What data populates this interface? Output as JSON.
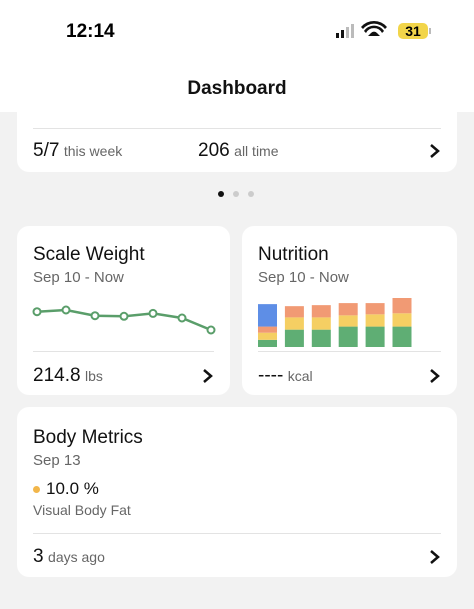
{
  "status_bar": {
    "time": "12:14",
    "battery": "31"
  },
  "header": {
    "title": "Dashboard"
  },
  "summary_card": {
    "week_count": "5/7",
    "week_label": "this week",
    "all_time_count": "206",
    "all_time_label": "all time"
  },
  "scale_weight": {
    "title": "Scale Weight",
    "range": "Sep 10 - Now",
    "value": "214.8",
    "unit": "lbs",
    "chart": {
      "type": "line",
      "color": "#5a9e6a",
      "values": [
        218,
        218.3,
        217.3,
        217.2,
        217.7,
        216.9,
        214.8
      ]
    }
  },
  "nutrition": {
    "title": "Nutrition",
    "range": "Sep 10 - Now",
    "value": "----",
    "unit": "kcal",
    "chart": {
      "type": "stacked_bar",
      "series": [
        {
          "color": "#5fae74",
          "values": [
            7,
            17,
            17,
            20,
            20,
            20
          ]
        },
        {
          "color": "#f5cf63",
          "values": [
            7,
            12,
            12,
            11,
            12,
            13
          ]
        },
        {
          "color": "#f19a74",
          "values": [
            6,
            11,
            12,
            12,
            11,
            15
          ]
        },
        {
          "color": "#5e8ee6",
          "values": [
            22,
            0,
            0,
            0,
            0,
            0
          ]
        }
      ]
    }
  },
  "body_metrics": {
    "title": "Body Metrics",
    "date": "Sep 13",
    "value": "10.0 %",
    "metric": "Visual Body Fat",
    "ago_count": "3",
    "ago_label": "days ago"
  }
}
